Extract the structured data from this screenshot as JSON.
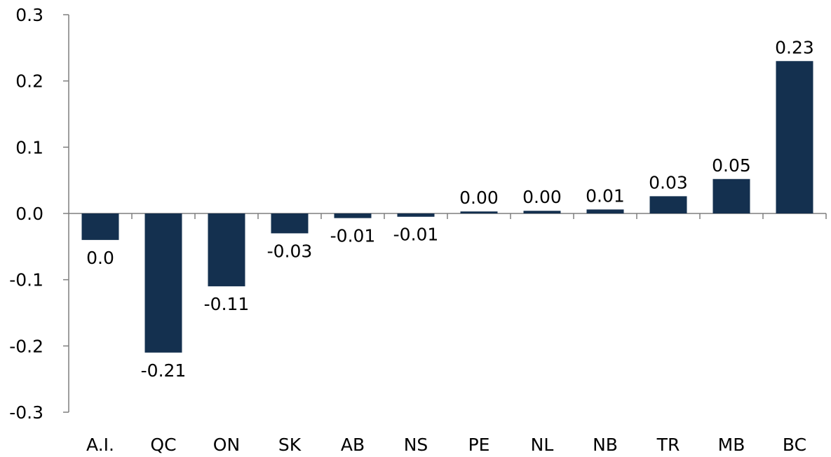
{
  "chart_data": {
    "type": "bar",
    "title": "",
    "xlabel": "",
    "ylabel": "",
    "categories": [
      "A.I.",
      "QC",
      "ON",
      "SK",
      "AB",
      "NS",
      "PE",
      "NL",
      "NB",
      "TR",
      "MB",
      "BC"
    ],
    "values": [
      -0.04,
      -0.21,
      -0.11,
      -0.03,
      -0.007,
      -0.005,
      0.003,
      0.004,
      0.006,
      0.026,
      0.052,
      0.23
    ],
    "data_labels": [
      "0.0",
      "-0.21",
      "-0.11",
      "-0.03",
      "-0.01",
      "-0.01",
      "0.00",
      "0.00",
      "0.01",
      "0.03",
      "0.05",
      "0.23"
    ],
    "ylim": [
      -0.3,
      0.3
    ],
    "yticks": [
      0.3,
      0.2,
      0.1,
      0.0,
      -0.1,
      -0.2,
      -0.3
    ],
    "ytick_labels": [
      "0.3",
      "0.2",
      "0.1",
      "0.0",
      "-0.1",
      "-0.2",
      "-0.3"
    ],
    "grid": false,
    "legend": "none",
    "bar_color": "#14304f",
    "axis_color": "#7f7f7f"
  }
}
